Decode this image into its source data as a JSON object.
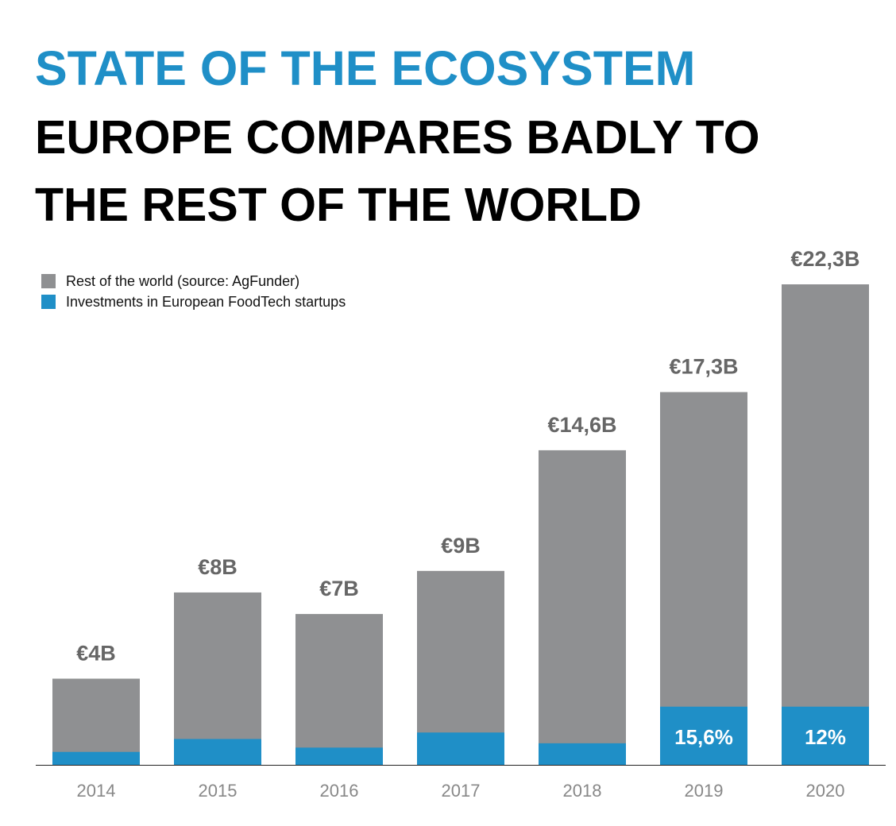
{
  "chart_data": {
    "type": "bar",
    "title": "STATE OF THE ECOSYSTEM",
    "subtitle": [
      "EUROPE COMPARES BADLY TO",
      "THE REST OF THE WORLD"
    ],
    "categories": [
      "2014",
      "2015",
      "2016",
      "2017",
      "2018",
      "2019",
      "2020"
    ],
    "series": [
      {
        "name": "Rest of the world (source: AgFunder)",
        "color": "#8f9092",
        "values": [
          4,
          8,
          7,
          9,
          14.6,
          17.3,
          22.3
        ],
        "value_labels": [
          "€4B",
          "€8B",
          "€7B",
          "€9B",
          "€14,6B",
          "€17,3B",
          "€22,3B"
        ]
      },
      {
        "name": "Investments in European FoodTech startups",
        "color": "#1f8fc7",
        "values": [
          0.6,
          1.2,
          0.8,
          1.5,
          1.0,
          2.7,
          2.7
        ]
      }
    ],
    "annotations": [
      {
        "category": "2019",
        "text": "15,6%"
      },
      {
        "category": "2020",
        "text": "12%"
      }
    ],
    "legend": "top-left"
  }
}
